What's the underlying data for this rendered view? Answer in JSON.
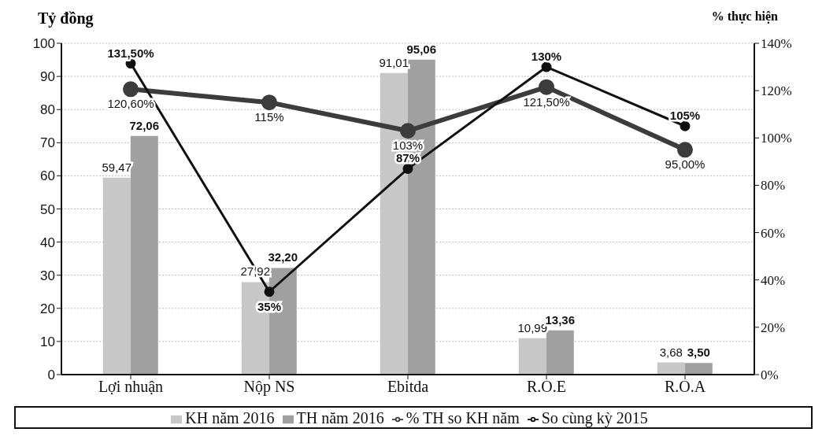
{
  "chart_data": {
    "type": "bar",
    "ylabel": "Tỷ đồng",
    "y2label": "% thực hiện",
    "categories": [
      "Lợi nhuận",
      "Nộp NS",
      "Ebitda",
      "R.O.E",
      "R.O.A"
    ],
    "series": [
      {
        "name": "KH năm 2016",
        "color": "#c8c8c8",
        "values": [
          59.47,
          27.92,
          91.01,
          10.99,
          3.68
        ],
        "value_labels": [
          "59,47",
          "27,92",
          "91,01",
          "10,99",
          "3,68"
        ]
      },
      {
        "name": "TH năm 2016",
        "color": "#a0a0a0",
        "values": [
          72.06,
          32.2,
          95.06,
          13.36,
          3.5
        ],
        "value_labels": [
          "72,06",
          "32,20",
          "95,06",
          "13,36",
          "3,50"
        ]
      },
      {
        "name": "% TH so KH năm",
        "type": "line",
        "axis": "y2",
        "color": "#3c3c3c",
        "values": [
          120.6,
          115,
          103,
          121.5,
          95
        ],
        "value_labels": [
          "120,60%",
          "115%",
          "103%",
          "121,50%",
          "95,00%"
        ]
      },
      {
        "name": "So cùng kỳ 2015",
        "type": "line",
        "axis": "y2",
        "color": "#111111",
        "values": [
          131.5,
          35,
          87,
          130,
          105
        ],
        "value_labels": [
          "131,50%",
          "35%",
          "87%",
          "130%",
          "105%"
        ]
      }
    ],
    "ylim": [
      0,
      100
    ],
    "yticks": [
      0,
      10,
      20,
      30,
      40,
      50,
      60,
      70,
      80,
      90,
      100
    ],
    "y2lim": [
      0,
      140
    ],
    "y2ticks": [
      {
        "value": 0,
        "label": "0%"
      },
      {
        "value": 20,
        "label": "20%"
      },
      {
        "value": 40,
        "label": "40%"
      },
      {
        "value": 60,
        "label": "60%"
      },
      {
        "value": 80,
        "label": "80%"
      },
      {
        "value": 100,
        "label": "100%"
      },
      {
        "value": 120,
        "label": "120%"
      },
      {
        "value": 140,
        "label": "140%"
      }
    ],
    "grid": "y",
    "legend": "bottom",
    "marker": "circle"
  }
}
